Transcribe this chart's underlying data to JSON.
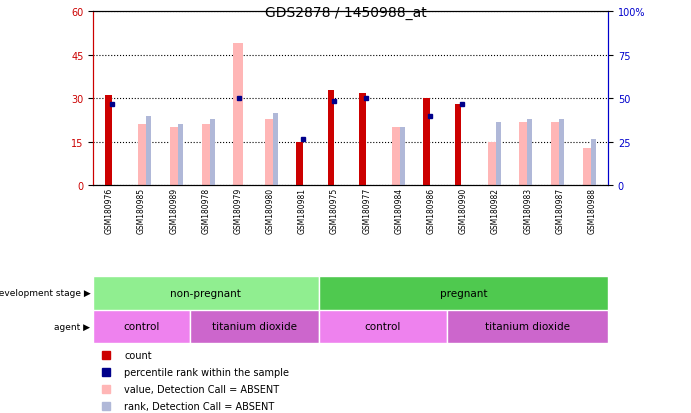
{
  "title": "GDS2878 / 1450988_at",
  "samples": [
    "GSM180976",
    "GSM180985",
    "GSM180989",
    "GSM180978",
    "GSM180979",
    "GSM180980",
    "GSM180981",
    "GSM180975",
    "GSM180977",
    "GSM180984",
    "GSM180986",
    "GSM180990",
    "GSM180982",
    "GSM180983",
    "GSM180987",
    "GSM180988"
  ],
  "count_values": [
    31,
    0,
    0,
    0,
    0,
    0,
    15,
    33,
    32,
    0,
    30,
    28,
    0,
    0,
    0,
    0
  ],
  "percentile_values": [
    28,
    0,
    0,
    0,
    30,
    0,
    16,
    29,
    30,
    0,
    24,
    28,
    0,
    0,
    0,
    0
  ],
  "absent_value_values": [
    0,
    21,
    20,
    21,
    49,
    23,
    0,
    0,
    0,
    20,
    0,
    0,
    15,
    22,
    22,
    13
  ],
  "absent_rank_values": [
    0,
    24,
    21,
    23,
    0,
    25,
    0,
    0,
    0,
    20,
    0,
    0,
    22,
    23,
    23,
    16
  ],
  "count_color": "#cc0000",
  "percentile_color": "#00008b",
  "absent_value_color": "#ffb6b6",
  "absent_rank_color": "#b0b8d8",
  "ylim_left": [
    0,
    60
  ],
  "ylim_right": [
    0,
    100
  ],
  "yticks_left": [
    0,
    15,
    30,
    45,
    60
  ],
  "yticks_right": [
    0,
    25,
    50,
    75,
    100
  ],
  "bar_width": 0.35,
  "grid_color": "#000000",
  "bg_color": "#ffffff",
  "plot_bg_color": "#ffffff",
  "left_axis_color": "#cc0000",
  "right_axis_color": "#0000cc",
  "sample_bg_color": "#c8c8c8",
  "dev_stage_groups": [
    {
      "label": "non-pregnant",
      "start": 0,
      "end": 7,
      "color": "#90ee90"
    },
    {
      "label": "pregnant",
      "start": 7,
      "end": 16,
      "color": "#4fc94f"
    }
  ],
  "agent_groups": [
    {
      "label": "control",
      "start": 0,
      "end": 3,
      "color": "#ee82ee"
    },
    {
      "label": "titanium dioxide",
      "start": 3,
      "end": 7,
      "color": "#cc66cc"
    },
    {
      "label": "control",
      "start": 7,
      "end": 11,
      "color": "#ee82ee"
    },
    {
      "label": "titanium dioxide",
      "start": 11,
      "end": 16,
      "color": "#cc66cc"
    }
  ],
  "legend_items": [
    {
      "label": "count",
      "color": "#cc0000"
    },
    {
      "label": "percentile rank within the sample",
      "color": "#00008b"
    },
    {
      "label": "value, Detection Call = ABSENT",
      "color": "#ffb6b6"
    },
    {
      "label": "rank, Detection Call = ABSENT",
      "color": "#b0b8d8"
    }
  ]
}
